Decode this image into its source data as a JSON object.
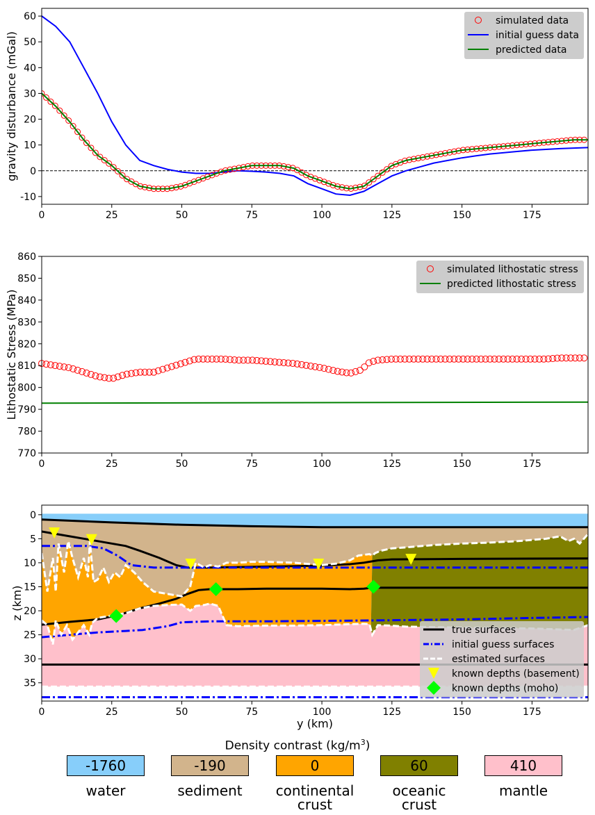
{
  "colors": {
    "simulated": "#ff0000",
    "initial": "#0000ff",
    "predicted": "#008000",
    "true_surface": "#000000",
    "estimated_surface": "#ffffff",
    "known_basement": "#ffff00",
    "known_moho": "#00ff00",
    "water": "#87cefa",
    "sediment": "#d2b48c",
    "continental_crust": "#ffa500",
    "oceanic_crust": "#808000",
    "mantle": "#ffc0cb",
    "legend_bg": "#cccccc"
  },
  "chart_data": [
    {
      "type": "line",
      "ylabel": "gravity disturbance (mGal)",
      "xlabel": "",
      "xlim": [
        0,
        195
      ],
      "ylim": [
        -13,
        63
      ],
      "xticks": [
        0,
        25,
        50,
        75,
        100,
        125,
        150,
        175
      ],
      "yticks": [
        -10,
        0,
        10,
        20,
        30,
        40,
        50,
        60
      ],
      "zero_line": true,
      "legend": [
        "simulated data",
        "initial guess data",
        "predicted data"
      ],
      "series": [
        {
          "name": "simulated data",
          "marker": "open-circle",
          "x": [
            0,
            5,
            10,
            15,
            20,
            25,
            30,
            35,
            40,
            45,
            50,
            55,
            60,
            65,
            70,
            75,
            80,
            85,
            90,
            95,
            100,
            105,
            110,
            115,
            120,
            125,
            130,
            135,
            140,
            145,
            150,
            155,
            160,
            165,
            170,
            175,
            180,
            185,
            190,
            195
          ],
          "y": [
            30,
            25,
            19,
            12,
            6,
            2,
            -3,
            -6,
            -7,
            -7,
            -6,
            -4,
            -2,
            0,
            1,
            2,
            2,
            2,
            1,
            -2,
            -4,
            -6,
            -7,
            -6,
            -2,
            2,
            4,
            5,
            6,
            7,
            8,
            8.5,
            9,
            9.5,
            10,
            10.5,
            11,
            11.5,
            12,
            12
          ]
        },
        {
          "name": "initial guess data",
          "x": [
            0,
            5,
            10,
            15,
            20,
            25,
            30,
            35,
            40,
            45,
            50,
            55,
            60,
            65,
            70,
            75,
            80,
            85,
            90,
            95,
            100,
            105,
            110,
            115,
            120,
            125,
            130,
            135,
            140,
            145,
            150,
            155,
            160,
            165,
            170,
            175,
            180,
            185,
            190,
            195
          ],
          "y": [
            60,
            56,
            50,
            40,
            30,
            19,
            10,
            4,
            2,
            0.5,
            -0.5,
            -1,
            -1,
            -0.5,
            0,
            -0.2,
            -0.5,
            -1,
            -2,
            -5,
            -7,
            -9,
            -9.5,
            -8,
            -5,
            -2,
            0,
            1.5,
            3,
            4,
            5,
            5.8,
            6.5,
            7,
            7.5,
            8,
            8.3,
            8.6,
            8.8,
            9
          ]
        },
        {
          "name": "predicted data",
          "x": [
            0,
            5,
            10,
            15,
            20,
            25,
            30,
            35,
            40,
            45,
            50,
            55,
            60,
            65,
            70,
            75,
            80,
            85,
            90,
            95,
            100,
            105,
            110,
            115,
            120,
            125,
            130,
            135,
            140,
            145,
            150,
            155,
            160,
            165,
            170,
            175,
            180,
            185,
            190,
            195
          ],
          "y": [
            30,
            25,
            19,
            12,
            6,
            2,
            -3,
            -6,
            -7,
            -7,
            -6,
            -4,
            -2,
            0,
            1,
            2,
            2,
            2,
            1,
            -2,
            -4,
            -6,
            -7,
            -6,
            -2,
            2,
            4,
            5,
            6,
            7,
            8,
            8.5,
            9,
            9.5,
            10,
            10.5,
            11,
            11.5,
            12,
            12
          ]
        }
      ]
    },
    {
      "type": "line",
      "ylabel": "Lithostatic Stress (MPa)",
      "xlabel": "",
      "xlim": [
        0,
        195
      ],
      "ylim": [
        770,
        860
      ],
      "xticks": [
        0,
        25,
        50,
        75,
        100,
        125,
        150,
        175
      ],
      "yticks": [
        770,
        780,
        790,
        800,
        810,
        820,
        830,
        840,
        850,
        860
      ],
      "legend": [
        "simulated lithostatic stress",
        "predicted lithostatic stress"
      ],
      "series": [
        {
          "name": "simulated lithostatic stress",
          "marker": "open-circle",
          "x": [
            0,
            5,
            10,
            15,
            20,
            25,
            30,
            35,
            40,
            45,
            50,
            55,
            60,
            65,
            70,
            75,
            80,
            85,
            90,
            95,
            100,
            105,
            110,
            114,
            117,
            120,
            125,
            130,
            135,
            140,
            145,
            150,
            155,
            160,
            165,
            170,
            175,
            180,
            185,
            190,
            195
          ],
          "y": [
            811,
            810,
            809,
            807,
            805,
            804,
            806,
            807,
            807,
            809,
            811,
            813,
            813,
            813,
            812.5,
            812.5,
            812,
            811.5,
            811,
            810,
            809,
            807.5,
            806.5,
            808,
            811.5,
            812.5,
            813,
            813,
            813,
            813,
            813,
            813,
            813,
            813,
            813,
            813,
            813,
            813,
            813.5,
            813.5,
            813.5
          ]
        },
        {
          "name": "predicted lithostatic stress",
          "x": [
            0,
            195
          ],
          "y": [
            792.8,
            793.3
          ]
        }
      ]
    },
    {
      "type": "area",
      "xlabel": "y (km)",
      "ylabel": "z (km)",
      "xlim": [
        0,
        195
      ],
      "ylim": [
        38.8,
        -2
      ],
      "xticks": [
        0,
        25,
        50,
        75,
        100,
        125,
        150,
        175
      ],
      "yticks": [
        0,
        5,
        10,
        15,
        20,
        25,
        30,
        35
      ],
      "legend": [
        "true surfaces",
        "initial guess surfaces",
        "estimated surfaces",
        "known depths (basement)",
        "known depths (moho)"
      ],
      "surfaces": {
        "true_water_bottom": {
          "x": [
            0,
            25,
            50,
            75,
            100,
            112,
            120,
            150,
            195
          ],
          "y": [
            1,
            1.6,
            2.1,
            2.4,
            2.6,
            2.6,
            2.6,
            2.6,
            2.6
          ]
        },
        "true_basement": {
          "x": [
            0,
            10,
            20,
            30,
            35,
            42,
            48,
            52,
            60,
            80,
            100,
            110,
            115,
            120,
            125,
            150,
            195
          ],
          "y": [
            3.5,
            4.5,
            5.5,
            6.5,
            7.5,
            9,
            10.5,
            11,
            11,
            10.8,
            10.6,
            10.3,
            10,
            9.5,
            9.3,
            9.2,
            9.1
          ]
        },
        "true_moho": {
          "x": [
            0,
            10,
            20,
            28,
            35,
            42,
            48,
            52,
            56,
            60,
            70,
            80,
            90,
            100,
            110,
            115,
            118,
            125,
            150,
            195
          ],
          "y": [
            22.9,
            22.3,
            21.8,
            20.8,
            19.5,
            18.5,
            17.5,
            16.5,
            15.7,
            15.5,
            15.5,
            15.4,
            15.4,
            15.4,
            15.5,
            15.4,
            15.2,
            15.2,
            15.2,
            15.2
          ]
        },
        "true_mantle_base": {
          "x": [
            0,
            195
          ],
          "y": [
            31.2,
            31.2
          ]
        },
        "initial_basement": {
          "x": [
            0,
            16,
            22,
            27,
            32,
            40,
            60,
            100,
            120,
            150,
            195
          ],
          "y": [
            6.5,
            6.5,
            7,
            8.5,
            10.5,
            11,
            11,
            11,
            11,
            11,
            11
          ]
        },
        "initial_moho": {
          "x": [
            0,
            10,
            20,
            30,
            36,
            45,
            50,
            60,
            80,
            100,
            120,
            150,
            175,
            195
          ],
          "y": [
            25.5,
            25,
            24.5,
            24.2,
            24,
            23.2,
            22.4,
            22.2,
            22.2,
            22.1,
            22,
            21.8,
            21.5,
            21.3
          ]
        },
        "initial_mantle_base": {
          "x": [
            0,
            195
          ],
          "y": [
            38,
            38
          ]
        },
        "estimated_basement": {
          "x": [
            0,
            2,
            4,
            5,
            6,
            8,
            9.5,
            11,
            13,
            15,
            16.5,
            17.2,
            18.5,
            20,
            22,
            24,
            26,
            28,
            30,
            33,
            36,
            40,
            45,
            50,
            53,
            55,
            58,
            60,
            63,
            66,
            70,
            75,
            80,
            90,
            100,
            105,
            110,
            113,
            117,
            118,
            119,
            121,
            125,
            130,
            140,
            150,
            160,
            170,
            180,
            185,
            188,
            190,
            192,
            195
          ],
          "y": [
            8,
            16,
            9,
            16,
            6,
            12,
            5.5,
            9,
            13,
            9,
            13,
            5.5,
            14,
            13.5,
            11,
            14,
            12,
            13,
            10.5,
            12,
            14,
            16,
            16.5,
            17,
            15,
            10,
            11,
            10.5,
            10.8,
            10,
            10,
            9.8,
            9.8,
            10,
            10.5,
            10.2,
            9.5,
            8.5,
            8.2,
            8.5,
            8,
            7.5,
            7,
            6.8,
            6.3,
            6,
            5.8,
            5.5,
            5,
            4.5,
            5.5,
            5,
            6,
            4
          ]
        },
        "estimated_moho": {
          "x": [
            0,
            2,
            4,
            5,
            7,
            9,
            11,
            15,
            17,
            18,
            20,
            25,
            30,
            35,
            40,
            45,
            50,
            53,
            55,
            58,
            60,
            63,
            66,
            70,
            80,
            90,
            100,
            110,
            115,
            117,
            118,
            120,
            125,
            130,
            150,
            175,
            190,
            195
          ],
          "y": [
            22,
            23,
            27,
            22,
            25,
            23,
            26,
            23,
            25,
            22.5,
            21.5,
            21,
            20.5,
            19.5,
            19,
            18.8,
            18.7,
            20,
            19,
            18.8,
            18.5,
            19,
            23,
            23.2,
            23.1,
            23.1,
            23,
            22.8,
            22.7,
            22.8,
            25,
            23,
            23.1,
            23.3,
            23.5,
            23.7,
            24,
            23
          ]
        },
        "estimated_mantle_base": {
          "x": [
            0,
            195
          ],
          "y": [
            35.8,
            35.8
          ]
        }
      },
      "known_basement": {
        "x": [
          4.5,
          17.8,
          53.2,
          98.8,
          131.8
        ],
        "y": [
          3.8,
          5.2,
          10.3,
          10.3,
          9.3
        ]
      },
      "known_moho": {
        "x": [
          26.6,
          62.2,
          118.4
        ],
        "y": [
          21.1,
          15.5,
          15.0
        ]
      }
    }
  ],
  "density_legend": {
    "title_prefix": "Density contrast (kg/m",
    "title_sup": "3",
    "title_suffix": ")",
    "items": [
      {
        "value": "-1760",
        "name_line1": "water",
        "name_line2": ""
      },
      {
        "value": "-190",
        "name_line1": "sediment",
        "name_line2": ""
      },
      {
        "value": "0",
        "name_line1": "continental",
        "name_line2": "crust"
      },
      {
        "value": "60",
        "name_line1": "oceanic",
        "name_line2": "crust"
      },
      {
        "value": "410",
        "name_line1": "mantle",
        "name_line2": ""
      }
    ]
  }
}
